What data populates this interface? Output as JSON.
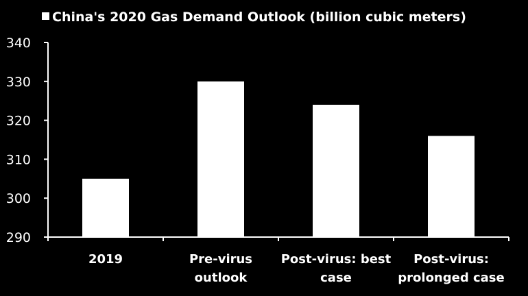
{
  "chart_data": {
    "type": "bar",
    "categories": [
      [
        "2019"
      ],
      [
        "Pre-virus",
        "outlook"
      ],
      [
        "Post-virus: best",
        "case"
      ],
      [
        "Post-virus:",
        "prolonged case"
      ]
    ],
    "series": [
      {
        "name": "China's 2020 Gas Demand Outlook (billion cubic meters)",
        "values": [
          305,
          330,
          324,
          316
        ],
        "color": "#ffffff"
      }
    ],
    "ylim": [
      290,
      340
    ],
    "yticks": [
      290,
      300,
      310,
      320,
      330,
      340
    ],
    "grid": false,
    "legend": "top-left",
    "background": "#000000",
    "axis_color": "#ffffff"
  }
}
